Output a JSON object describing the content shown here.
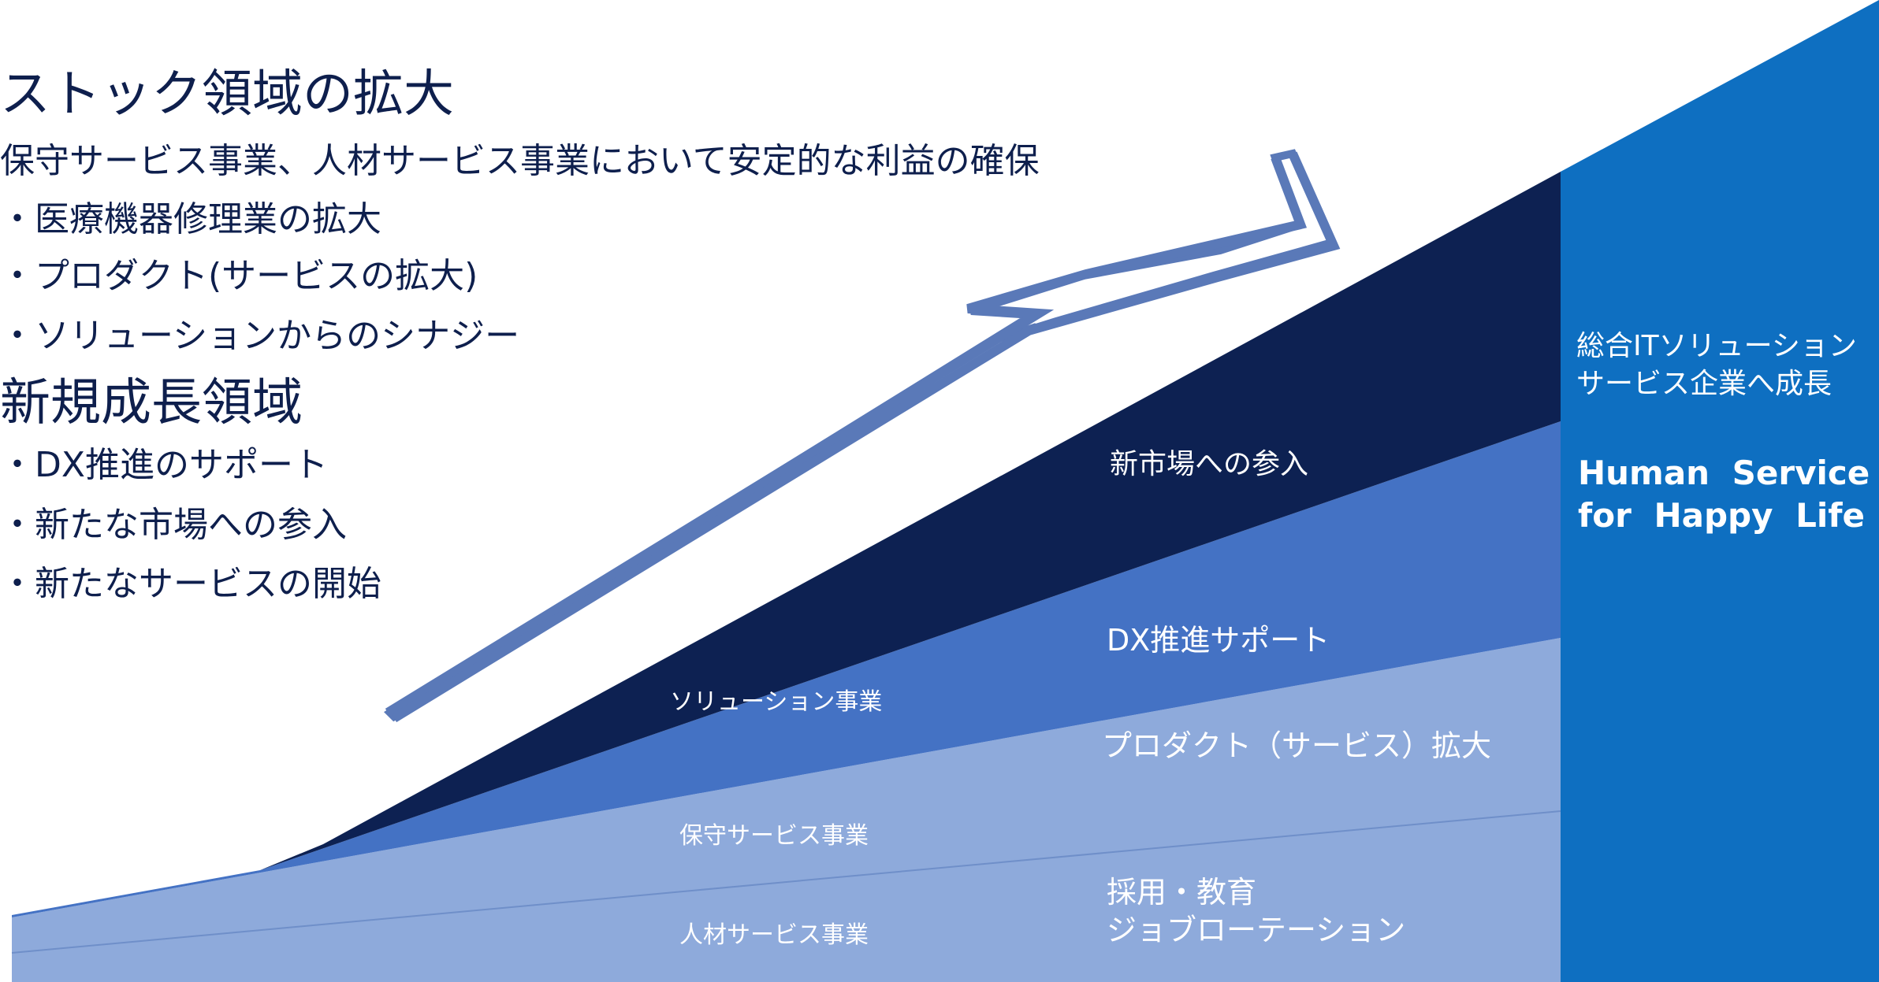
{
  "colors": {
    "dark_navy": "#0d2152",
    "mid_blue": "#4472c4",
    "light_blue": "#8eaadb",
    "band_blue": "#0e6fc1",
    "arrow_fill": "#ffffff",
    "arrow_stroke": "#5a79b8",
    "text_dark": "#0e1f4d"
  },
  "left_panel": {
    "title1": "ストック領域の拡大",
    "subtitle": "保守サービス事業、人材サービス事業において安定的な利益の確保",
    "stock_items": [
      "・医療機器修理業の拡大",
      "・プロダクト(サービスの拡大)",
      "・ソリューションからのシナジー"
    ],
    "title2": "新規成長領域",
    "growth_items": [
      "・DX推進のサポート",
      "・新たな市場への参入",
      "・新たなサービスの開始"
    ]
  },
  "wedges": {
    "solution": "ソリューション事業",
    "maintenance": "保守サービス事業",
    "hr": "人材サービス事業"
  },
  "right_labels": {
    "new_market": "新市場への参入",
    "dx": "DX推進サポート",
    "product": "プロダクト（サービス）拡大",
    "hiring_line1": "採用・教育",
    "hiring_line2": "ジョブローテーション"
  },
  "band": {
    "goal_line1": "総合ITソリューション",
    "goal_line2": "サービス企業へ成長",
    "slogan_line1": "Human Service",
    "slogan_line2": "for Happy Life"
  },
  "icons": {
    "growth_arrow": "upward-arrow-icon"
  }
}
